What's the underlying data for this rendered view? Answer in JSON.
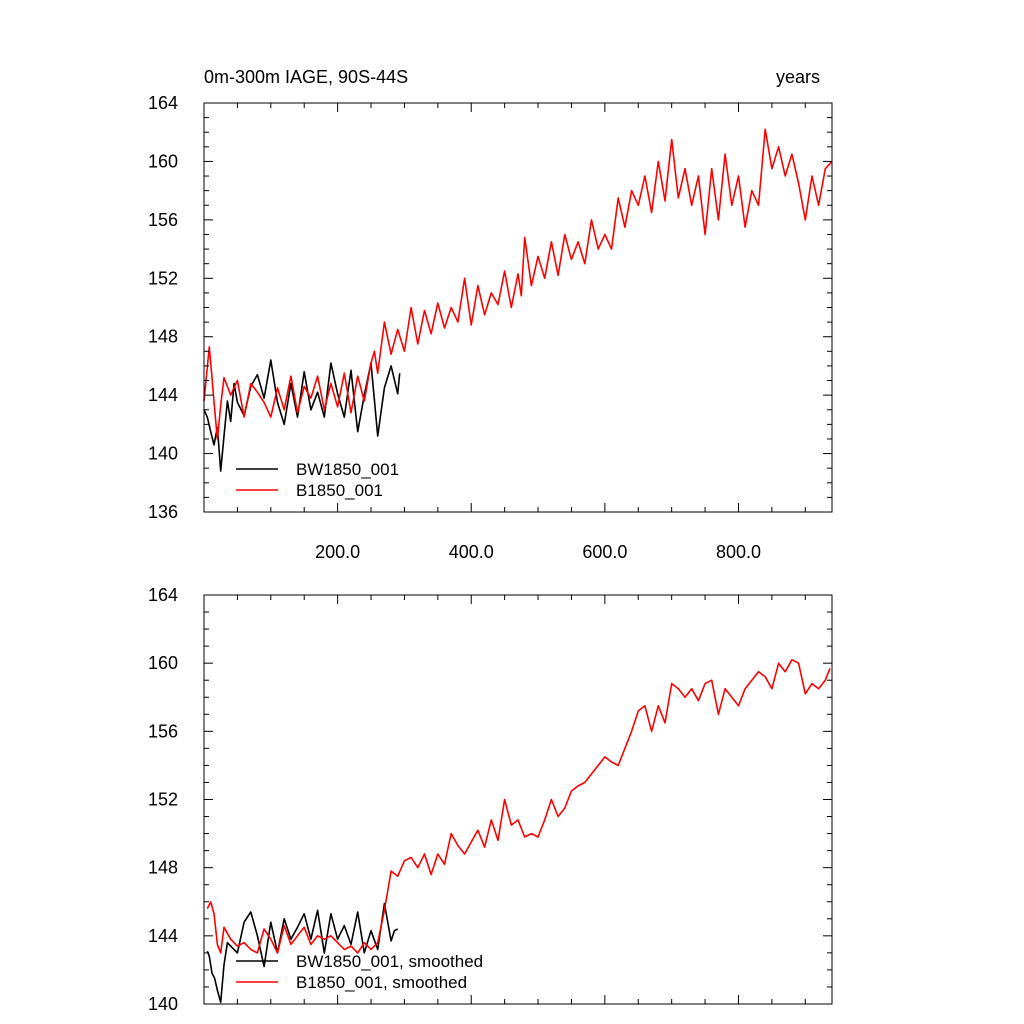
{
  "chart_data": [
    {
      "type": "line",
      "title_left": "0m-300m IAGE, 90S-44S",
      "title_right": "years",
      "xlabel": "",
      "ylabel": "",
      "xlim": [
        0,
        940
      ],
      "ylim": [
        136,
        164
      ],
      "x_ticks": [
        200,
        400,
        600,
        800
      ],
      "x_tick_labels": [
        "200.0",
        "400.0",
        "600.0",
        "800.0"
      ],
      "y_ticks": [
        136,
        140,
        144,
        148,
        152,
        156,
        160,
        164
      ],
      "y_tick_labels": [
        "136",
        "140",
        "144",
        "148",
        "152",
        "156",
        "160",
        "164"
      ],
      "legend_position": "bottom-left",
      "series": [
        {
          "name": "BW1850_001",
          "color": "#000000",
          "x": [
            0,
            5,
            10,
            15,
            20,
            25,
            30,
            35,
            40,
            45,
            50,
            60,
            70,
            80,
            90,
            100,
            110,
            120,
            130,
            140,
            150,
            160,
            170,
            180,
            190,
            200,
            210,
            220,
            230,
            240,
            250,
            260,
            270,
            280,
            290,
            293
          ],
          "values": [
            143.0,
            142.5,
            141.5,
            140.6,
            141.8,
            138.8,
            141.2,
            143.6,
            142.2,
            144.8,
            143.5,
            142.6,
            144.6,
            145.4,
            143.8,
            146.4,
            143.5,
            142.0,
            144.8,
            142.5,
            145.6,
            143.0,
            144.2,
            142.5,
            146.2,
            144.1,
            142.5,
            145.7,
            141.5,
            144.0,
            146.2,
            141.2,
            144.5,
            146.0,
            144.1,
            145.5
          ]
        },
        {
          "name": "B1850_001",
          "color": "#ff0000",
          "x": [
            0,
            4,
            8,
            12,
            16,
            20,
            25,
            30,
            40,
            50,
            60,
            70,
            80,
            90,
            100,
            110,
            120,
            130,
            140,
            150,
            160,
            170,
            180,
            190,
            200,
            210,
            220,
            230,
            240,
            250,
            255,
            260,
            270,
            280,
            290,
            300,
            310,
            320,
            330,
            340,
            350,
            360,
            370,
            380,
            390,
            400,
            410,
            420,
            430,
            440,
            450,
            460,
            470,
            475,
            480,
            490,
            500,
            510,
            520,
            530,
            540,
            550,
            560,
            570,
            580,
            590,
            600,
            610,
            620,
            630,
            640,
            650,
            660,
            670,
            680,
            690,
            700,
            710,
            720,
            730,
            740,
            750,
            760,
            770,
            780,
            790,
            800,
            810,
            820,
            830,
            840,
            850,
            860,
            870,
            880,
            890,
            900,
            910,
            920,
            930,
            940
          ],
          "values": [
            143.6,
            145.5,
            147.3,
            145.2,
            143.0,
            141.0,
            143.3,
            145.2,
            144.0,
            145.0,
            142.5,
            144.8,
            144.2,
            143.5,
            142.5,
            144.5,
            143.0,
            145.3,
            142.8,
            144.6,
            143.8,
            145.3,
            143.0,
            144.8,
            143.2,
            145.5,
            142.8,
            145.3,
            143.6,
            146.2,
            147.0,
            145.5,
            149.0,
            146.8,
            148.5,
            147.0,
            150.0,
            147.5,
            149.8,
            148.2,
            150.3,
            148.6,
            150.0,
            149.0,
            152.0,
            148.8,
            151.5,
            149.5,
            151.0,
            150.2,
            152.5,
            150.0,
            152.3,
            150.8,
            154.8,
            151.5,
            153.5,
            152.0,
            154.5,
            152.2,
            155.0,
            153.3,
            154.5,
            153.0,
            156.0,
            154.0,
            155.0,
            154.0,
            157.5,
            155.5,
            158.0,
            157.0,
            159.0,
            156.5,
            160.0,
            157.3,
            161.5,
            157.5,
            159.5,
            157.0,
            159.0,
            155.0,
            159.5,
            156.0,
            160.5,
            157.0,
            159.0,
            155.5,
            158.0,
            157.0,
            162.2,
            159.5,
            161.0,
            159.0,
            160.5,
            158.5,
            156.0,
            159.0,
            157.0,
            159.5,
            160.0
          ]
        }
      ]
    },
    {
      "type": "line",
      "title_left": "",
      "title_right": "",
      "xlabel": "",
      "ylabel": "",
      "xlim": [
        0,
        940
      ],
      "ylim": [
        140,
        164
      ],
      "x_ticks": [
        200,
        400,
        600,
        800
      ],
      "x_tick_labels": [],
      "y_ticks": [
        140,
        144,
        148,
        152,
        156,
        160,
        164
      ],
      "y_tick_labels": [
        "140",
        "144",
        "148",
        "152",
        "156",
        "160",
        "164"
      ],
      "legend_position": "bottom-left",
      "series": [
        {
          "name": "BW1850_001, smoothed",
          "color": "#000000",
          "x": [
            5,
            8,
            12,
            16,
            20,
            25,
            30,
            35,
            40,
            50,
            60,
            70,
            80,
            90,
            100,
            110,
            120,
            130,
            140,
            150,
            160,
            170,
            180,
            190,
            200,
            210,
            220,
            230,
            240,
            250,
            260,
            270,
            280,
            285,
            290
          ],
          "values": [
            143.1,
            142.8,
            141.8,
            141.5,
            140.8,
            140.1,
            142.3,
            143.6,
            143.4,
            143.0,
            144.8,
            145.4,
            144.0,
            142.2,
            144.8,
            143.0,
            145.0,
            143.8,
            144.5,
            145.3,
            143.8,
            145.5,
            143.0,
            145.3,
            143.8,
            144.6,
            143.5,
            145.4,
            143.0,
            144.3,
            143.2,
            145.9,
            143.7,
            144.3,
            144.4
          ]
        },
        {
          "name": "B1850_001, smoothed",
          "color": "#ff0000",
          "x": [
            5,
            10,
            15,
            20,
            25,
            30,
            40,
            50,
            60,
            70,
            80,
            90,
            100,
            110,
            120,
            130,
            140,
            150,
            160,
            170,
            180,
            190,
            200,
            210,
            220,
            230,
            240,
            250,
            260,
            270,
            280,
            290,
            300,
            310,
            320,
            330,
            340,
            350,
            360,
            370,
            380,
            390,
            400,
            410,
            420,
            430,
            440,
            450,
            460,
            470,
            480,
            490,
            500,
            510,
            520,
            530,
            540,
            550,
            560,
            570,
            580,
            590,
            600,
            610,
            620,
            630,
            640,
            650,
            660,
            670,
            680,
            690,
            700,
            710,
            720,
            730,
            740,
            750,
            760,
            770,
            780,
            790,
            800,
            810,
            820,
            830,
            840,
            850,
            860,
            870,
            880,
            890,
            900,
            910,
            920,
            930,
            937
          ],
          "values": [
            145.6,
            146.0,
            145.3,
            143.5,
            143.0,
            144.5,
            143.8,
            143.4,
            143.6,
            143.2,
            143.0,
            144.4,
            143.8,
            143.0,
            144.6,
            143.5,
            144.0,
            144.5,
            143.5,
            144.0,
            143.8,
            144.0,
            143.6,
            143.2,
            143.4,
            143.0,
            143.6,
            143.2,
            143.6,
            145.5,
            147.8,
            147.5,
            148.4,
            148.6,
            148.0,
            148.8,
            147.6,
            148.8,
            148.2,
            150.0,
            149.3,
            148.8,
            149.5,
            150.2,
            149.2,
            150.8,
            149.6,
            152.0,
            150.5,
            150.8,
            149.8,
            150.0,
            149.8,
            150.8,
            152.0,
            151.0,
            151.5,
            152.5,
            152.8,
            153.0,
            153.5,
            154.0,
            154.5,
            154.2,
            154.0,
            155.0,
            156.0,
            157.2,
            157.5,
            156.0,
            157.5,
            156.5,
            158.8,
            158.5,
            158.0,
            158.5,
            157.8,
            158.8,
            159.0,
            157.0,
            158.5,
            158.0,
            157.5,
            158.5,
            159.0,
            159.5,
            159.2,
            158.5,
            160.0,
            159.5,
            160.2,
            160.0,
            158.2,
            158.8,
            158.5,
            159.0,
            159.7
          ]
        }
      ]
    }
  ]
}
